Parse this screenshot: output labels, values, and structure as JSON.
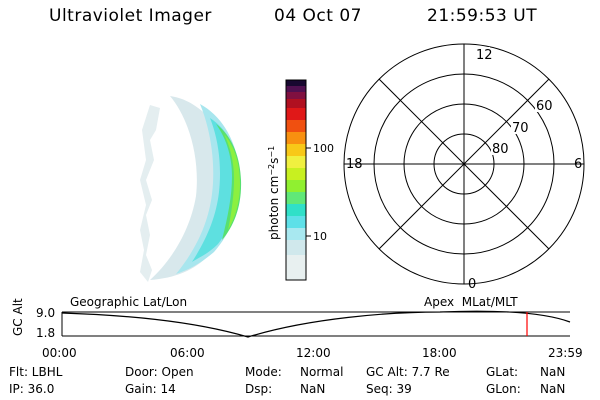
{
  "header": {
    "instrument": "Ultraviolet Imager",
    "date": "04 Oct 07",
    "time": "21:59:53 UT"
  },
  "colorbar": {
    "label": "photon cm-2s-1",
    "ticks": [
      "100",
      "10"
    ],
    "colors": [
      "#e8f0f0",
      "#d0e8ec",
      "#a8e8f0",
      "#5ee0e8",
      "#30e0c8",
      "#60e878",
      "#90f030",
      "#c8f020",
      "#f0f040",
      "#f8c818",
      "#f89010",
      "#f05010",
      "#e01818",
      "#b01020",
      "#801040",
      "#501050",
      "#301060",
      "#180830"
    ]
  },
  "polar": {
    "mlt_labels": {
      "top": "12",
      "bottom": "0",
      "left": "18",
      "right": "6"
    },
    "lat_labels": [
      "60",
      "70",
      "80"
    ]
  },
  "timeline": {
    "left_label": "Geographic Lat/Lon",
    "right_label": "Apex  MLat/MLT",
    "axis_title": "GC Alt",
    "y_ticks": [
      "9.0",
      "1.8"
    ],
    "x_ticks": [
      "00:00",
      "06:00",
      "12:00",
      "18:00",
      "23:59"
    ],
    "curve_color": "#000000",
    "marker_color": "#ff0000"
  },
  "info": {
    "filter": "Flt: LBHL",
    "ip": "IP: 36.0",
    "door": "Door: Open",
    "gain": "Gain: 14",
    "mode_label": "Mode:",
    "mode_value": "Normal",
    "dsp_label": "Dsp:",
    "dsp_value": "NaN",
    "gcalt": "GC Alt: 7.7 Re",
    "seq": "Seq: 39",
    "glat_label": "GLat:",
    "glat_value": "NaN",
    "glon_label": "GLon:",
    "glon_value": "NaN"
  }
}
